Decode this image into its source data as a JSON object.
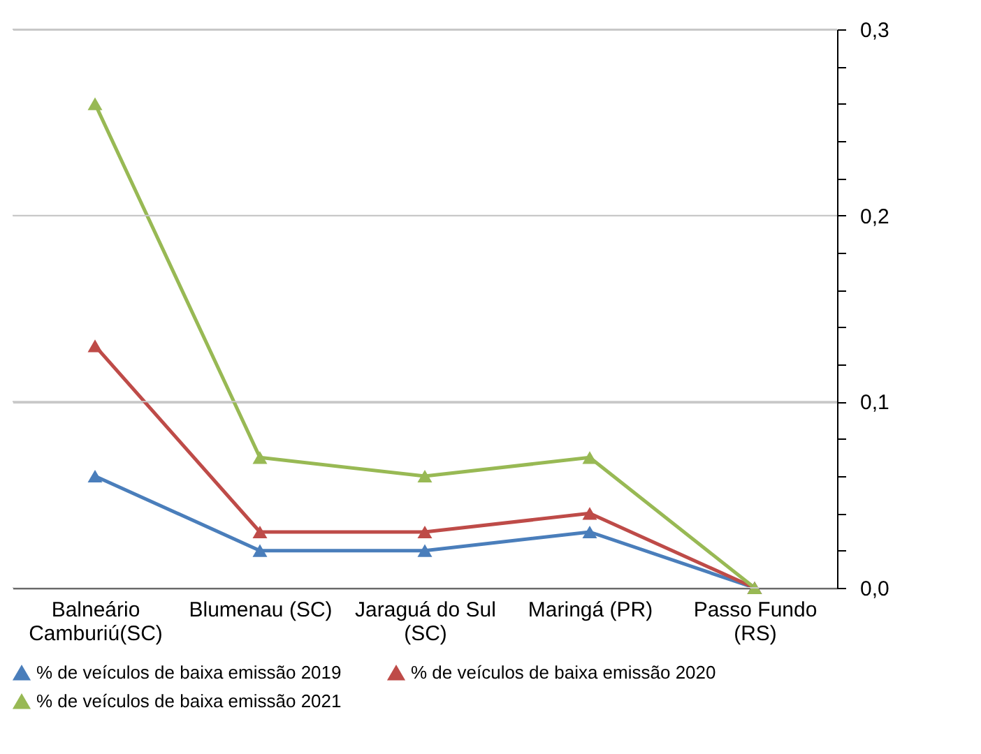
{
  "chart_data": {
    "type": "line",
    "categories": [
      "Balneário Camburiú(SC)",
      "Blumenau (SC)",
      "Jaraguá do Sul (SC)",
      "Maringá (PR)",
      "Passo Fundo (RS)"
    ],
    "series": [
      {
        "name": "% de veículos de baixa emissão 2019",
        "color": "#4a7ebb",
        "values": [
          0.06,
          0.02,
          0.02,
          0.03,
          0
        ]
      },
      {
        "name": "% de veículos de baixa emissão 2020",
        "color": "#be4b48",
        "values": [
          0.13,
          0.03,
          0.03,
          0.04,
          0
        ]
      },
      {
        "name": "% de veículos de baixa emissão 2021",
        "color": "#98b954",
        "values": [
          0.26,
          0.07,
          0.06,
          0.07,
          0
        ]
      }
    ],
    "ylim": [
      0,
      0.3
    ],
    "yticks": [
      {
        "value": 0,
        "label": "0,0"
      },
      {
        "value": 0.02,
        "label": null
      },
      {
        "value": 0.04,
        "label": null
      },
      {
        "value": 0.06,
        "label": null
      },
      {
        "value": 0.08,
        "label": null
      },
      {
        "value": 0.1,
        "label": "0,1"
      },
      {
        "value": 0.12,
        "label": null
      },
      {
        "value": 0.14,
        "label": null
      },
      {
        "value": 0.16,
        "label": null
      },
      {
        "value": 0.18,
        "label": null
      },
      {
        "value": 0.2,
        "label": "0,2"
      },
      {
        "value": 0.22,
        "label": null
      },
      {
        "value": 0.24,
        "label": null
      },
      {
        "value": 0.26,
        "label": null
      },
      {
        "value": 0.28,
        "label": null
      },
      {
        "value": 0.3,
        "label": "0,3"
      }
    ],
    "grid": "y",
    "legend": "bottom",
    "marker": "triangle",
    "line_style": "solid"
  }
}
